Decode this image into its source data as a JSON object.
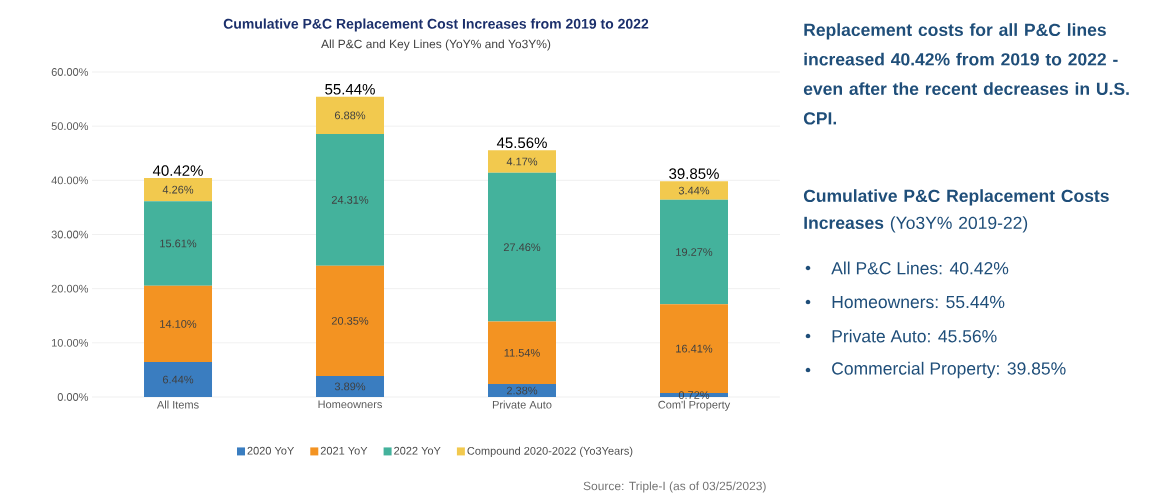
{
  "chart_data": {
    "type": "bar",
    "stacked": true,
    "title": "Cumulative P&C Replacement Cost Increases from 2019 to 2022",
    "subtitle": "All P&C and Key Lines (YoY% and Yo3Y%)",
    "categories": [
      "All Items",
      "Homeowners",
      "Private Auto",
      "Com'l Property"
    ],
    "series": [
      {
        "name": "2020 YoY",
        "color": "#3a7dc0",
        "values": [
          6.44,
          3.89,
          2.38,
          0.72
        ],
        "value_labels": [
          "6.44%",
          "3.89%",
          "2.38%",
          "0.72%"
        ]
      },
      {
        "name": "2021 YoY",
        "color": "#f39322",
        "values": [
          14.1,
          20.35,
          11.54,
          16.41
        ],
        "value_labels": [
          "14.10%",
          "20.35%",
          "11.54%",
          "16.41%"
        ]
      },
      {
        "name": "2022 YoY",
        "color": "#44b29c",
        "values": [
          15.61,
          24.31,
          27.46,
          19.27
        ],
        "value_labels": [
          "15.61%",
          "24.31%",
          "27.46%",
          "19.27%"
        ]
      },
      {
        "name": "Compound 2020-2022 (Yo3Years)",
        "color": "#f2c94e",
        "values": [
          4.26,
          6.88,
          4.17,
          3.44
        ],
        "value_labels": [
          "4.26%",
          "6.88%",
          "4.17%",
          "3.44%"
        ]
      }
    ],
    "totals": [
      "40.42%",
      "55.44%",
      "45.56%",
      "39.85%"
    ],
    "ylim": [
      0,
      60
    ],
    "yticks": [
      {
        "value": 0,
        "label": "0.00%"
      },
      {
        "value": 10,
        "label": "10.00%"
      },
      {
        "value": 20,
        "label": "20.00%"
      },
      {
        "value": 30,
        "label": "30.00%"
      },
      {
        "value": 40,
        "label": "40.00%"
      },
      {
        "value": 50,
        "label": "50.00%"
      },
      {
        "value": 60,
        "label": "60.00%"
      }
    ],
    "grid": "y",
    "legend": "bottom",
    "annotations": [
      "Replacement costs for all P&C lines increased 40.42% from 2019 to 2022 - even after the recent decreases in U.S. CPI.",
      "**Cumulative P&C Replacement Costs Increases** (Yo3Y% 2019-22)",
      "All P&C Lines: 40.42%",
      "Homeowners: 55.44%",
      "Private Auto: 45.56%",
      "Commercial Property: 39.85%",
      "Source: Triple-I (as of 03/25/2023)"
    ]
  }
}
